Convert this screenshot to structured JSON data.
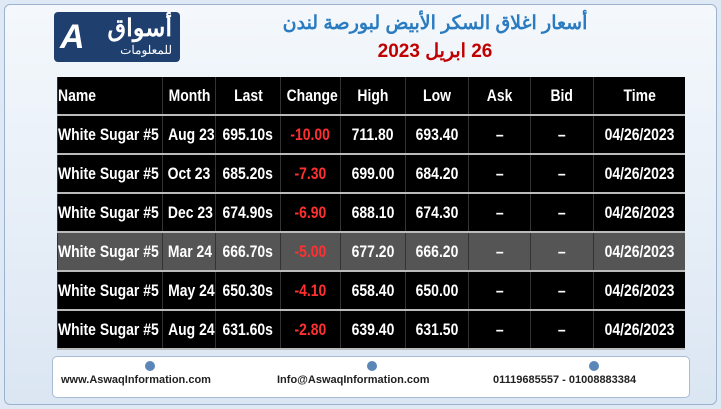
{
  "header": {
    "logo_main": "أسواق",
    "logo_sub": "للمعلومات",
    "title": "أسعار اغلاق السكر الأبيض لبورصة لندن",
    "date": "26 ابريل 2023"
  },
  "table": {
    "columns": [
      "Name",
      "Month",
      "Last",
      "Change",
      "High",
      "Low",
      "Ask",
      "Bid",
      "Time"
    ],
    "rows": [
      [
        "White Sugar #5",
        "Aug 23",
        "695.10s",
        "-10.00",
        "711.80",
        "693.40",
        "–",
        "–",
        "04/26/2023"
      ],
      [
        "White Sugar #5",
        "Oct 23",
        "685.20s",
        "-7.30",
        "699.00",
        "684.20",
        "–",
        "–",
        "04/26/2023"
      ],
      [
        "White Sugar #5",
        "Dec 23",
        "674.90s",
        "-6.90",
        "688.10",
        "674.30",
        "–",
        "–",
        "04/26/2023"
      ],
      [
        "White Sugar #5",
        "Mar 24",
        "666.70s",
        "-5.00",
        "677.20",
        "666.20",
        "–",
        "–",
        "04/26/2023"
      ],
      [
        "White Sugar #5",
        "May 24",
        "650.30s",
        "-4.10",
        "658.40",
        "650.00",
        "–",
        "–",
        "04/26/2023"
      ],
      [
        "White Sugar #5",
        "Aug 24",
        "631.60s",
        "-2.80",
        "639.40",
        "631.50",
        "–",
        "–",
        "04/26/2023"
      ]
    ]
  },
  "footer": {
    "website": "www.AswaqInformation.com",
    "email": "Info@AswaqInformation.com",
    "phones": "01119685557 - 01008883384"
  }
}
